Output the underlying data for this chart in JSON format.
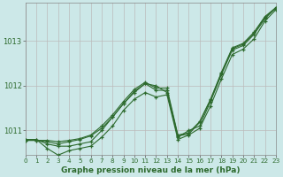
{
  "background_color": "#cce8e8",
  "grid_color_h": "#bbbbbb",
  "grid_color_v": "#bbbbbb",
  "line_color": "#2d6a2d",
  "xlabel": "Graphe pression niveau de la mer (hPa)",
  "xlim": [
    0,
    23
  ],
  "ylim": [
    1010.45,
    1013.85
  ],
  "yticks": [
    1011,
    1012,
    1013
  ],
  "xticks": [
    0,
    1,
    2,
    3,
    4,
    5,
    6,
    7,
    8,
    9,
    10,
    11,
    12,
    13,
    14,
    15,
    16,
    17,
    18,
    19,
    20,
    21,
    22,
    23
  ],
  "series": [
    [
      1010.8,
      1010.8,
      1010.7,
      1010.65,
      1010.65,
      1010.7,
      1010.75,
      1011.0,
      1011.3,
      1011.6,
      1011.85,
      1012.05,
      1012.0,
      1011.85,
      1010.85,
      1011.0,
      1011.1,
      1011.65,
      1012.25,
      1012.8,
      1012.9,
      1013.15,
      1013.5,
      1013.75
    ],
    [
      1010.8,
      1010.8,
      1010.6,
      1010.45,
      1010.55,
      1010.6,
      1010.65,
      1010.85,
      1011.1,
      1011.45,
      1011.7,
      1011.85,
      1011.75,
      1011.8,
      1010.8,
      1010.9,
      1011.05,
      1011.55,
      1012.15,
      1012.7,
      1012.82,
      1013.05,
      1013.45,
      1013.7
    ],
    [
      1010.78,
      1010.78,
      1010.75,
      1010.7,
      1010.75,
      1010.8,
      1010.88,
      1011.05,
      1011.3,
      1011.6,
      1011.88,
      1012.05,
      1011.9,
      1011.9,
      1010.88,
      1010.92,
      1011.18,
      1011.68,
      1012.28,
      1012.83,
      1012.93,
      1013.18,
      1013.53,
      1013.73
    ],
    [
      1010.78,
      1010.78,
      1010.78,
      1010.75,
      1010.78,
      1010.82,
      1010.9,
      1011.1,
      1011.35,
      1011.65,
      1011.92,
      1012.08,
      1011.95,
      1011.95,
      1010.9,
      1010.95,
      1011.2,
      1011.7,
      1012.3,
      1012.85,
      1012.95,
      1013.2,
      1013.55,
      1013.75
    ]
  ]
}
